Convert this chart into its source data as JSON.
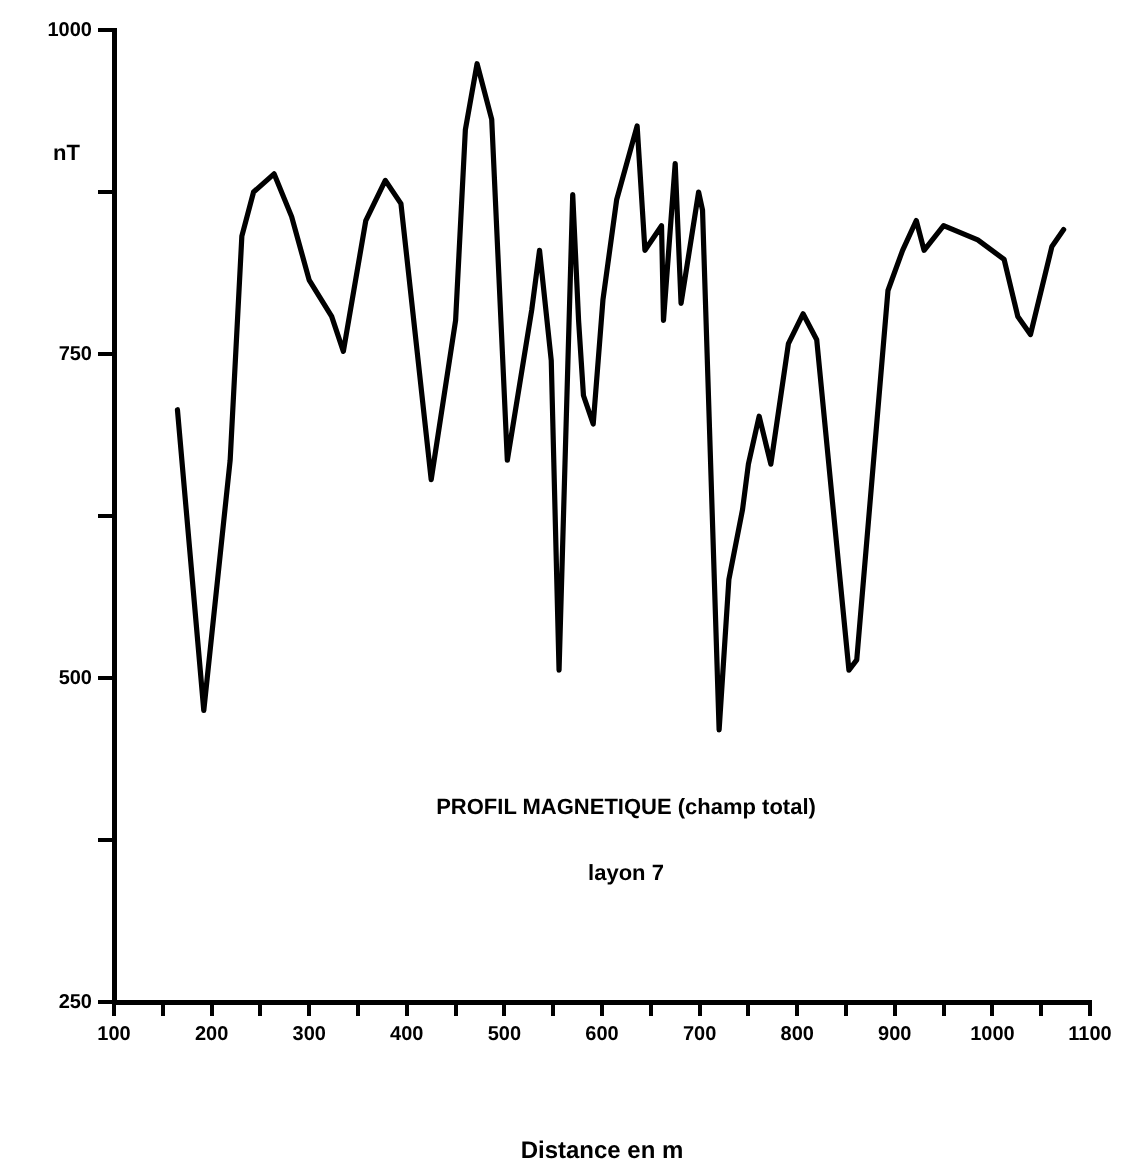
{
  "chart_data": {
    "type": "line",
    "xlabel": "Distance en m",
    "ylabel": "nT",
    "annotations": [
      "PROFIL MAGNETIQUE (champ total)",
      "layon 7"
    ],
    "xlim": [
      100,
      1100
    ],
    "xticks": [
      100,
      {
        "value": 150,
        "label": null
      },
      200,
      {
        "value": 250,
        "label": null
      },
      300,
      {
        "value": 350,
        "label": null
      },
      400,
      {
        "value": 450,
        "label": null
      },
      500,
      {
        "value": 550,
        "label": null
      },
      600,
      {
        "value": 650,
        "label": null
      },
      700,
      {
        "value": 750,
        "label": null
      },
      800,
      {
        "value": 850,
        "label": null
      },
      900,
      {
        "value": 950,
        "label": null
      },
      1000,
      {
        "value": 1050,
        "label": null
      },
      1100
    ],
    "ylim": [
      250,
      1000
    ],
    "yticks": [
      250,
      {
        "value": 375,
        "label": null
      },
      500,
      {
        "value": 625,
        "label": null
      },
      750,
      {
        "value": 875,
        "label": null
      },
      1000
    ],
    "marker": "none",
    "line_style": "solid",
    "legend": false,
    "series": [
      {
        "color": "#000000",
        "x": [
          165,
          192,
          219,
          231,
          243,
          264,
          282,
          300,
          323,
          335,
          358,
          378,
          394,
          425,
          450,
          460,
          472,
          487,
          503,
          528,
          536,
          548,
          556,
          570,
          576,
          581,
          591,
          601,
          615,
          636,
          644,
          661,
          663,
          675,
          681,
          699,
          703,
          720,
          730,
          744,
          750,
          761,
          773,
          791,
          806,
          820,
          836,
          853,
          861,
          893,
          908,
          922,
          930,
          950,
          985,
          1012,
          1026,
          1039,
          1061,
          1073
        ],
        "values": [
          707,
          475,
          668,
          841,
          875,
          889,
          856,
          807,
          779,
          752,
          853,
          884,
          866,
          653,
          776,
          923,
          974,
          931,
          668,
          784,
          830,
          745,
          506,
          873,
          776,
          718,
          696,
          792,
          869,
          926,
          830,
          849,
          776,
          897,
          789,
          875,
          861,
          460,
          576,
          630,
          665,
          702,
          665,
          758,
          781,
          761,
          637,
          506,
          514,
          799,
          830,
          853,
          830,
          849,
          838,
          823,
          779,
          765,
          833,
          846
        ]
      }
    ]
  }
}
